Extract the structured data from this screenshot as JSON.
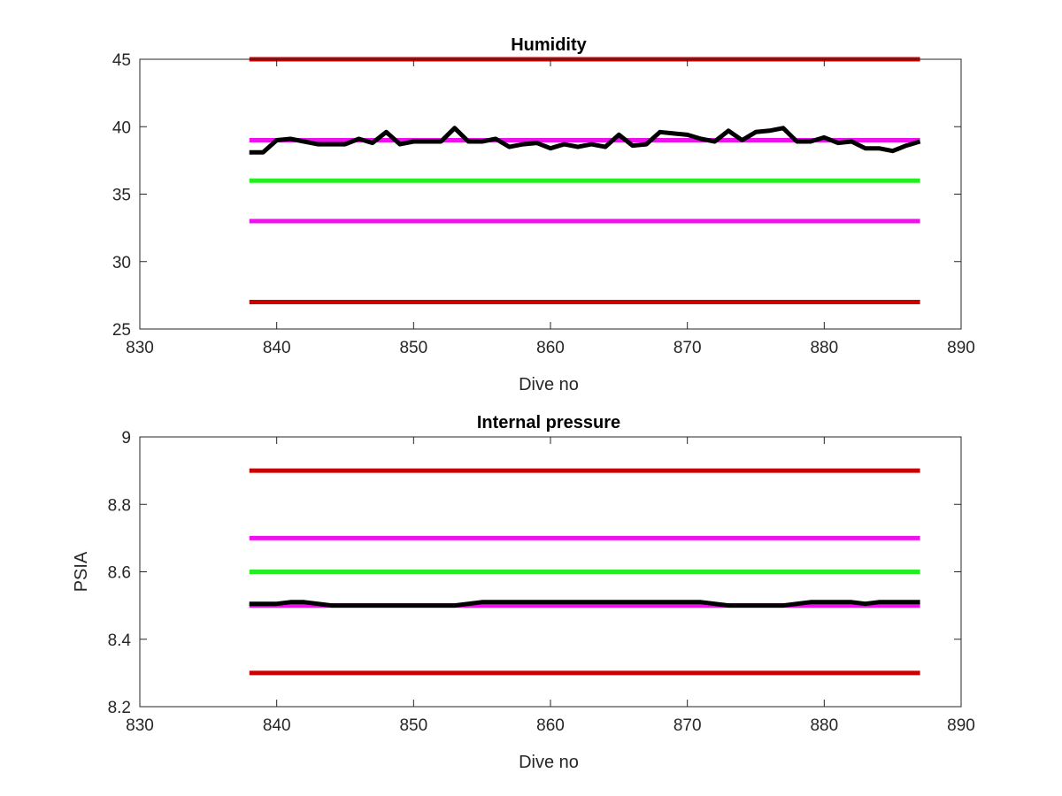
{
  "chart_data": [
    {
      "type": "line",
      "title": "Humidity",
      "xlabel": "Dive no",
      "ylabel": "",
      "xlim": [
        830,
        890
      ],
      "ylim": [
        25,
        45
      ],
      "xticks": [
        830,
        840,
        850,
        860,
        870,
        880,
        890
      ],
      "yticks": [
        25,
        30,
        35,
        40,
        45
      ],
      "grid": false,
      "legend": "none",
      "reference_lines": [
        {
          "y": 45,
          "x": [
            838,
            887
          ],
          "color": "#cc0000"
        },
        {
          "y": 39,
          "x": [
            838,
            887
          ],
          "color": "#ee11ee"
        },
        {
          "y": 36,
          "x": [
            838,
            887
          ],
          "color": "#22ee22"
        },
        {
          "y": 33,
          "x": [
            838,
            887
          ],
          "color": "#ee11ee"
        },
        {
          "y": 27,
          "x": [
            838,
            887
          ],
          "color": "#cc0000"
        }
      ],
      "series": [
        {
          "color": "#000000",
          "x": [
            838,
            839,
            840,
            841,
            842,
            843,
            844,
            845,
            846,
            847,
            848,
            849,
            850,
            851,
            852,
            853,
            854,
            855,
            856,
            857,
            858,
            859,
            860,
            861,
            862,
            863,
            864,
            865,
            866,
            867,
            868,
            869,
            870,
            871,
            872,
            873,
            874,
            875,
            876,
            877,
            878,
            879,
            880,
            881,
            882,
            883,
            884,
            885,
            886,
            887
          ],
          "y": [
            38.1,
            38.1,
            39.0,
            39.1,
            38.9,
            38.7,
            38.7,
            38.7,
            39.1,
            38.8,
            39.6,
            38.7,
            38.9,
            38.9,
            38.9,
            39.9,
            38.9,
            38.9,
            39.1,
            38.5,
            38.7,
            38.8,
            38.4,
            38.7,
            38.5,
            38.7,
            38.5,
            39.4,
            38.6,
            38.7,
            39.6,
            39.5,
            39.4,
            39.1,
            38.9,
            39.7,
            39.0,
            39.6,
            39.7,
            39.9,
            38.9,
            38.9,
            39.2,
            38.8,
            38.9,
            38.4,
            38.4,
            38.2,
            38.6,
            38.9
          ]
        }
      ]
    },
    {
      "type": "line",
      "title": "Internal pressure",
      "xlabel": "Dive no",
      "ylabel": "PSIA",
      "xlim": [
        830,
        890
      ],
      "ylim": [
        8.2,
        9
      ],
      "xticks": [
        830,
        840,
        850,
        860,
        870,
        880,
        890
      ],
      "yticks": [
        8.2,
        8.4,
        8.6,
        8.8,
        9
      ],
      "grid": false,
      "legend": "none",
      "reference_lines": [
        {
          "y": 8.9,
          "x": [
            838,
            887
          ],
          "color": "#cc0000"
        },
        {
          "y": 8.7,
          "x": [
            838,
            887
          ],
          "color": "#ee11ee"
        },
        {
          "y": 8.6,
          "x": [
            838,
            887
          ],
          "color": "#22ee22"
        },
        {
          "y": 8.5,
          "x": [
            838,
            887
          ],
          "color": "#ee11ee"
        },
        {
          "y": 8.3,
          "x": [
            838,
            887
          ],
          "color": "#cc0000"
        }
      ],
      "series": [
        {
          "color": "#000000",
          "x": [
            838,
            839,
            840,
            841,
            842,
            843,
            844,
            845,
            846,
            847,
            848,
            849,
            850,
            851,
            852,
            853,
            854,
            855,
            856,
            857,
            858,
            859,
            860,
            861,
            862,
            863,
            864,
            865,
            866,
            867,
            868,
            869,
            870,
            871,
            872,
            873,
            874,
            875,
            876,
            877,
            878,
            879,
            880,
            881,
            882,
            883,
            884,
            885,
            886,
            887
          ],
          "y": [
            8.505,
            8.505,
            8.505,
            8.51,
            8.51,
            8.505,
            8.5,
            8.5,
            8.5,
            8.5,
            8.5,
            8.5,
            8.5,
            8.5,
            8.5,
            8.5,
            8.505,
            8.51,
            8.51,
            8.51,
            8.51,
            8.51,
            8.51,
            8.51,
            8.51,
            8.51,
            8.51,
            8.51,
            8.51,
            8.51,
            8.51,
            8.51,
            8.51,
            8.51,
            8.505,
            8.5,
            8.5,
            8.5,
            8.5,
            8.5,
            8.505,
            8.51,
            8.51,
            8.51,
            8.51,
            8.505,
            8.51,
            8.51,
            8.51,
            8.51
          ]
        }
      ]
    }
  ]
}
